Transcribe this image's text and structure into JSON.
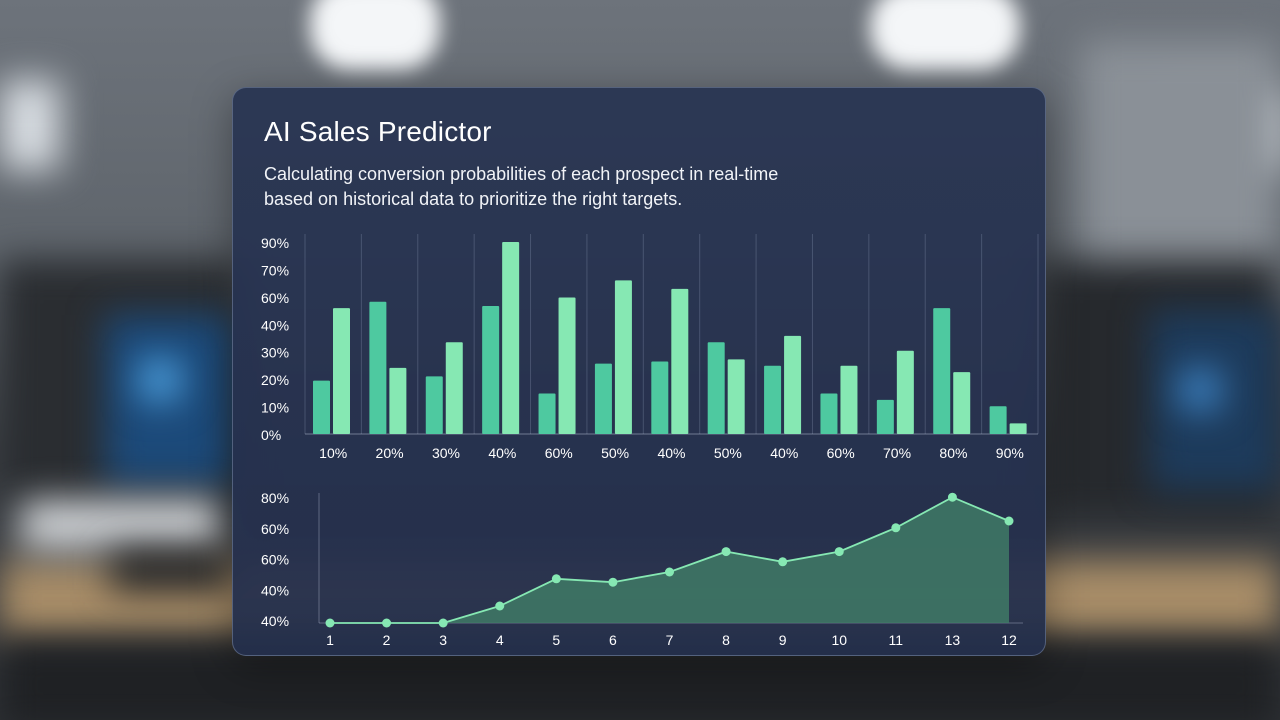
{
  "header": {
    "title": "AI Sales Predictor",
    "subtitle_line1": "Calculating conversion probabilities of each prospect in real-time",
    "subtitle_line2": "based on historical data to prioritize the right targets."
  },
  "colors": {
    "bar_dark": "#4ec9a0",
    "bar_light": "#86e8b3",
    "line": "#86e8b3",
    "area": "#3f7a66",
    "panel": "#2a3656",
    "text": "#ffffff"
  },
  "chart_data": [
    {
      "type": "bar",
      "y_tick_labels": [
        "0%",
        "10%",
        "20%",
        "30%",
        "40%",
        "60%",
        "70%",
        "90%"
      ],
      "categories": [
        "10%",
        "20%",
        "30%",
        "40%",
        "60%",
        "50%",
        "40%",
        "50%",
        "40%",
        "60%",
        "70%",
        "80%",
        "90%"
      ],
      "ylim": [
        0,
        90
      ],
      "grid": "vertical",
      "series": [
        {
          "values": [
            25,
            62,
            27,
            60,
            19,
            33,
            34,
            43,
            32,
            19,
            16,
            59,
            13
          ]
        },
        {
          "values": [
            59,
            31,
            43,
            90,
            64,
            72,
            68,
            35,
            46,
            32,
            39,
            29,
            5
          ]
        }
      ]
    },
    {
      "type": "area",
      "y_tick_labels": [
        "40%",
        "40%",
        "60%",
        "60%",
        "80%"
      ],
      "x_tick_labels": [
        "1",
        "2",
        "3",
        "4",
        "5",
        "6",
        "7",
        "8",
        "9",
        "10",
        "11",
        "13",
        "12"
      ],
      "ylim": [
        40,
        80
      ],
      "values": [
        40,
        40,
        40,
        45,
        53,
        52,
        55,
        61,
        58,
        61,
        68,
        77,
        70
      ]
    }
  ]
}
